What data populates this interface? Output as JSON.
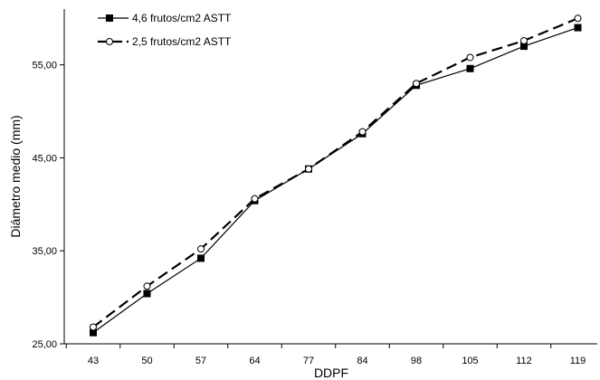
{
  "chart_data": {
    "type": "line",
    "categories": [
      "43",
      "50",
      "57",
      "64",
      "77",
      "84",
      "98",
      "105",
      "112",
      "119"
    ],
    "xlabel": "DDPF",
    "ylabel": "Diámetro medio (mm)",
    "ylim": [
      25,
      61
    ],
    "yticks": [
      "25,00",
      "35,00",
      "45,00",
      "55,00"
    ],
    "ytick_values": [
      25,
      35,
      45,
      55
    ],
    "grid": false,
    "legend_position": "top-left",
    "series": [
      {
        "name": "4,6 frutos/cm2 ASTT",
        "marker": "filled-square",
        "line_style": "solid",
        "color": "#000000",
        "values": [
          26.2,
          30.4,
          34.2,
          40.4,
          43.8,
          47.6,
          52.8,
          54.6,
          57.0,
          59.0
        ]
      },
      {
        "name": "2,5 frutos/cm2 ASTT",
        "marker": "open-circle",
        "line_style": "dashed",
        "color": "#000000",
        "values": [
          26.8,
          31.2,
          35.2,
          40.6,
          43.8,
          47.8,
          53.0,
          55.8,
          57.6,
          60.0
        ]
      }
    ]
  }
}
